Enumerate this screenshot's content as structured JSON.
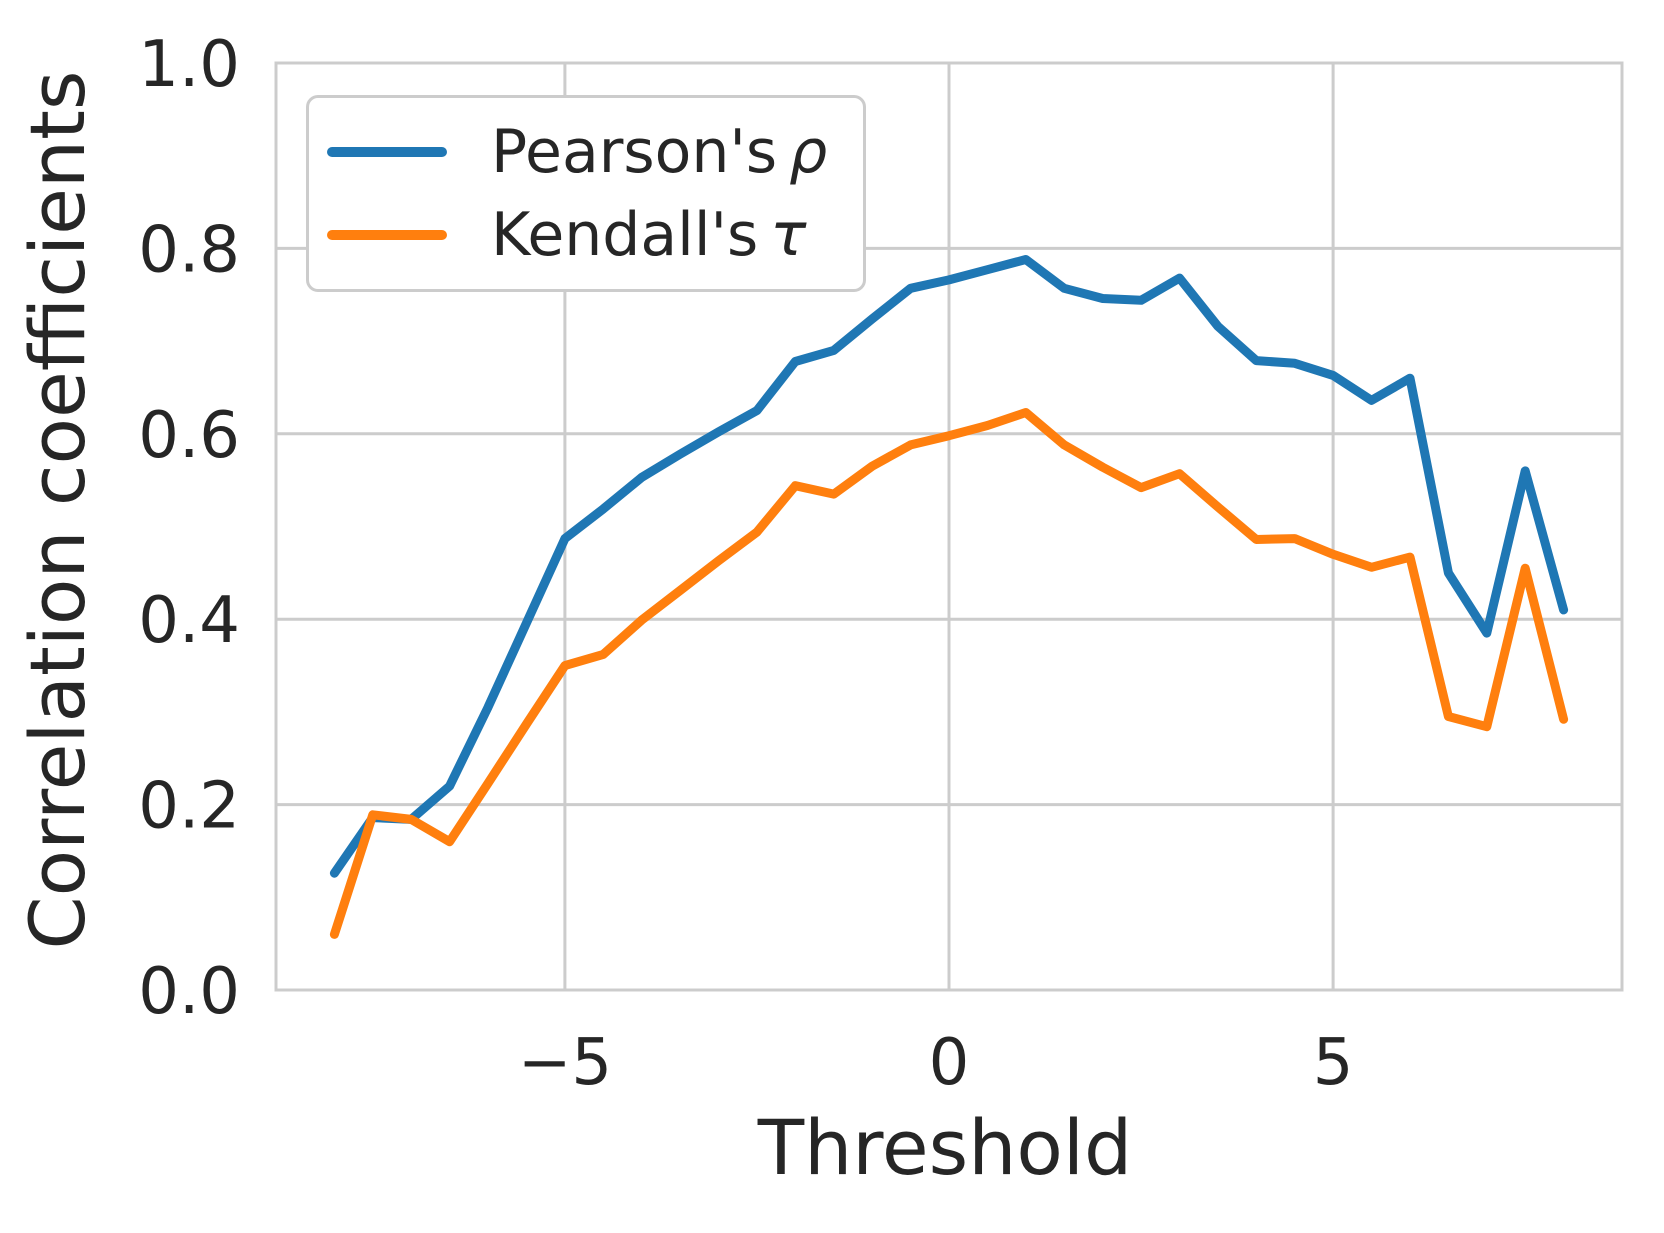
{
  "figure": {
    "background": "#ffffff"
  },
  "legend": {
    "items": [
      {
        "label": "Pearson's",
        "symbol": "ρ"
      },
      {
        "label": "Kendall's",
        "symbol": "τ"
      }
    ]
  },
  "chart_data": {
    "type": "line",
    "title": "",
    "xlabel": "Threshold",
    "ylabel": "Correlation coefficients",
    "xlim": [
      -8.76,
      8.76
    ],
    "ylim": [
      0.0,
      1.0
    ],
    "grid": true,
    "legend_position": "upper left",
    "grid_color": "#cccccc",
    "text_color": "#262626",
    "line_width": 9,
    "x_ticks": [
      {
        "value": -5,
        "label": "−5"
      },
      {
        "value": 0,
        "label": "0"
      },
      {
        "value": 5,
        "label": "5"
      }
    ],
    "y_ticks": [
      {
        "value": 0.0,
        "label": "0.0"
      },
      {
        "value": 0.2,
        "label": "0.2"
      },
      {
        "value": 0.4,
        "label": "0.4"
      },
      {
        "value": 0.6,
        "label": "0.6"
      },
      {
        "value": 0.8,
        "label": "0.8"
      },
      {
        "value": 1.0,
        "label": "1.0"
      }
    ],
    "x": [
      -8,
      -7.5,
      -7,
      -6.5,
      -6,
      -5.5,
      -5,
      -4.5,
      -4,
      -3.5,
      -3,
      -2.5,
      -2,
      -1.5,
      -1,
      -0.5,
      0,
      0.5,
      1,
      1.5,
      2,
      2.5,
      3,
      3.5,
      4,
      4.5,
      5,
      5.5,
      6,
      6.5,
      7,
      7.5,
      8
    ],
    "series": [
      {
        "id": "pearsons-rho",
        "name": "Pearson's ρ",
        "color": "#1f77b4",
        "values": [
          0.126,
          0.186,
          0.184,
          0.22,
          0.305,
          0.396,
          0.487,
          0.519,
          0.553,
          0.578,
          0.602,
          0.625,
          0.678,
          0.69,
          0.724,
          0.757,
          0.766,
          0.777,
          0.788,
          0.757,
          0.746,
          0.744,
          0.768,
          0.716,
          0.679,
          0.676,
          0.663,
          0.636,
          0.66,
          0.45,
          0.385,
          0.56,
          0.41
        ]
      },
      {
        "id": "kendalls-tau",
        "name": "Kendall's τ",
        "color": "#ff7f0e",
        "values": [
          0.06,
          0.189,
          0.184,
          0.16,
          0.223,
          0.287,
          0.35,
          0.362,
          0.399,
          0.431,
          0.463,
          0.494,
          0.544,
          0.535,
          0.565,
          0.588,
          0.598,
          0.609,
          0.623,
          0.588,
          0.564,
          0.542,
          0.557,
          0.521,
          0.486,
          0.487,
          0.47,
          0.456,
          0.467,
          0.295,
          0.284,
          0.455,
          0.292
        ]
      }
    ]
  }
}
